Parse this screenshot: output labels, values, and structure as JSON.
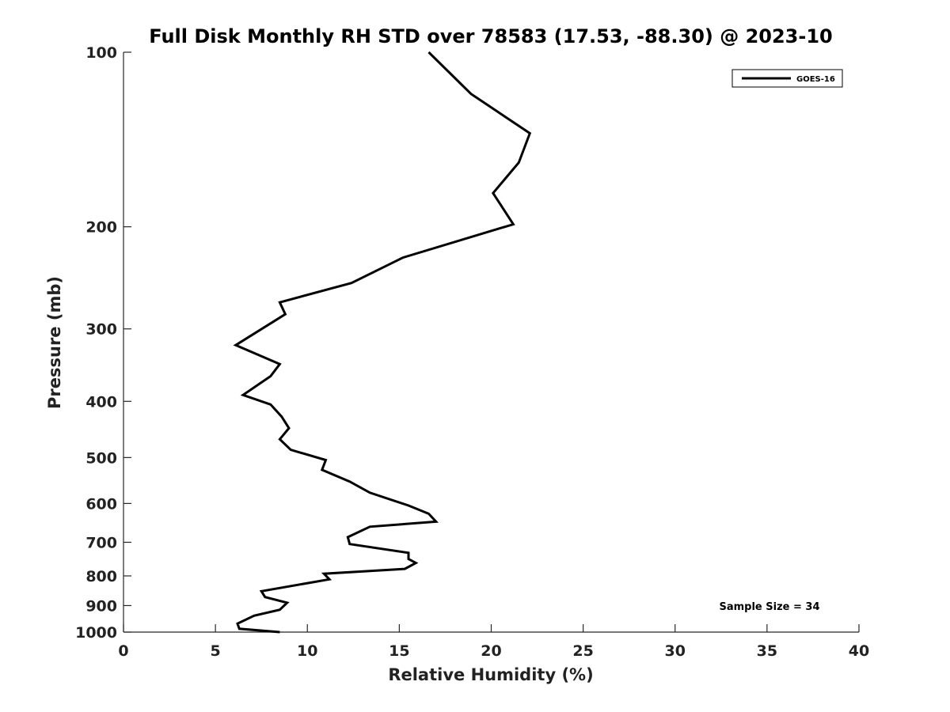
{
  "chart_data": {
    "type": "line",
    "title": "Full Disk Monthly RH STD over 78583 (17.53, -88.30) @ 2023-10",
    "xlabel": "Relative Humidity (%)",
    "ylabel": "Pressure (mb)",
    "xlim": [
      0,
      40
    ],
    "ylim": [
      100,
      1000
    ],
    "y_scale": "log",
    "y_reversed": true,
    "x_ticks": [
      "0",
      "5",
      "10",
      "15",
      "20",
      "25",
      "30",
      "35",
      "40"
    ],
    "y_ticks": [
      "100",
      "200",
      "300",
      "400",
      "500",
      "600",
      "700",
      "800",
      "900",
      "1000"
    ],
    "grid": false,
    "legend_position": "top-right",
    "annotation": "Sample Size = 34",
    "colors": {
      "line": "#000000",
      "axis": "#262626"
    },
    "series": [
      {
        "name": "GOES-16",
        "x": [
          16.6,
          18.9,
          22.1,
          21.5,
          20.1,
          21.2,
          15.2,
          12.4,
          8.5,
          8.8,
          6.1,
          8.5,
          8.0,
          6.5,
          8.0,
          8.6,
          9.0,
          8.5,
          9.1,
          11.0,
          10.8,
          12.3,
          13.4,
          15.5,
          16.6,
          17.0,
          13.4,
          12.2,
          12.3,
          15.5,
          15.5,
          15.9,
          15.3,
          10.9,
          11.2,
          7.5,
          7.7,
          8.9,
          8.5,
          7.1,
          6.2,
          6.3,
          8.5
        ],
        "y": [
          100,
          118,
          138,
          155,
          175,
          198,
          226,
          250,
          270,
          283,
          320,
          345,
          362,
          390,
          405,
          425,
          445,
          465,
          485,
          505,
          525,
          550,
          575,
          605,
          625,
          645,
          658,
          686,
          705,
          730,
          748,
          760,
          778,
          793,
          811,
          850,
          870,
          890,
          915,
          937,
          967,
          987,
          1000
        ]
      }
    ]
  }
}
